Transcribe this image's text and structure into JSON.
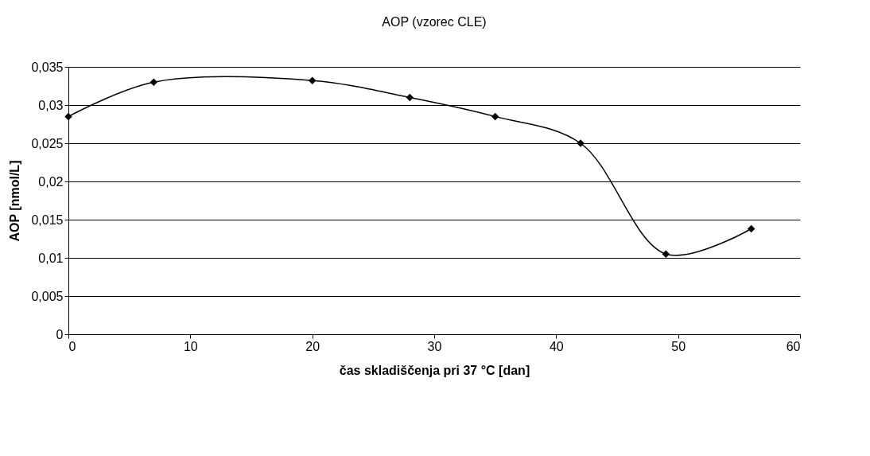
{
  "chart_data": {
    "type": "line",
    "title": "AOP (vzorec CLE)",
    "xlabel": "čas skladiščenja pri 37 °C [dan]",
    "ylabel": "AOP [nmol/L]",
    "x": [
      0,
      7,
      20,
      28,
      35,
      42,
      49,
      56
    ],
    "series": [
      {
        "color": "#000000",
        "values": [
          0.0285,
          0.033,
          0.0332,
          0.031,
          0.0285,
          0.025,
          0.0105,
          0.0138
        ]
      }
    ],
    "xlim": [
      0,
      60
    ],
    "xticks": [
      0,
      10,
      20,
      30,
      40,
      50,
      60
    ],
    "ylim": [
      0,
      0.035
    ],
    "yticks": [
      {
        "value": 0,
        "label": "0"
      },
      {
        "value": 0.005,
        "label": "0,005"
      },
      {
        "value": 0.01,
        "label": "0,01"
      },
      {
        "value": 0.015,
        "label": "0,015"
      },
      {
        "value": 0.02,
        "label": "0,02"
      },
      {
        "value": 0.025,
        "label": "0,025"
      },
      {
        "value": 0.03,
        "label": "0,03"
      },
      {
        "value": 0.035,
        "label": "0,035"
      }
    ],
    "grid": "y",
    "marker": "diamond",
    "line_style": "solid"
  }
}
